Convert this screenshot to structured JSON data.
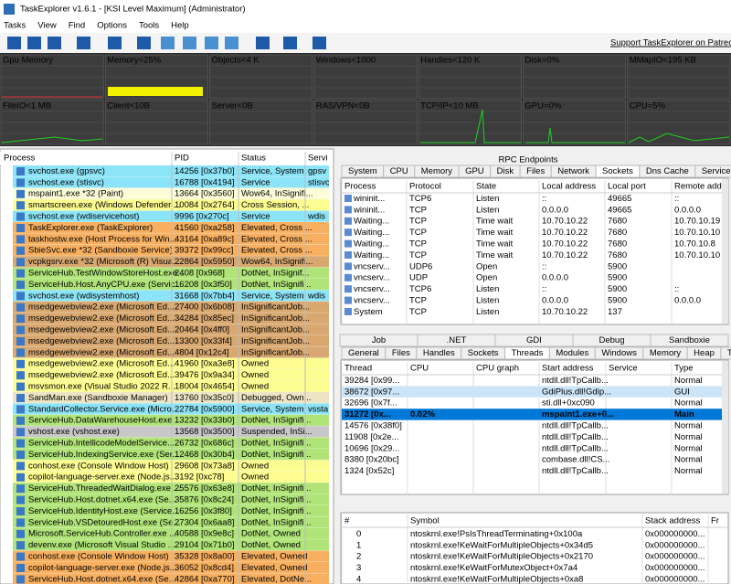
{
  "window": {
    "title": "TaskExplorer v1.6.1 - [KSI Level Maximum] (Administrator)"
  },
  "menu": [
    "Tasks",
    "View",
    "Find",
    "Options",
    "Tools",
    "Help"
  ],
  "toolbar": {
    "link": "Support TaskExplorer on Patreon"
  },
  "graphs": [
    "Gpu Memory",
    "Memory=25%",
    "Objects<4 K",
    "Windows<1000",
    "Handles<120 K",
    "Disk=0%",
    "MMapIO<195 KB",
    "FileIO<1 MB",
    "Client<10B",
    "Server<0B",
    "RAS/VPN<0B",
    "TCP/IP<10 MB",
    "GPU=0%",
    "CPU=5%"
  ],
  "processes": {
    "columns": [
      "Process",
      "PID",
      "Status",
      "Servi"
    ],
    "rows": [
      {
        "cells": [
          "svchost.exe (gpsvc)",
          "14256 [0x37b0]",
          "Service, System",
          "gpsv"
        ],
        "color": "#8ce4f8"
      },
      {
        "cells": [
          "svchost.exe (stisvc)",
          "16788 [0x4194]",
          "Service",
          "stisvc"
        ],
        "color": "#8ce4f8"
      },
      {
        "cells": [
          "mspaint1.exe *32 (Paint)",
          "13664 [0x3560]",
          "Wow64, InSignifi..."
        ],
        "color": "#fcfcd8"
      },
      {
        "cells": [
          "smartscreen.exe (Windows Defender ...",
          "10084 [0x2764]",
          "Cross Session, ..."
        ],
        "color": "#fcfc90"
      },
      {
        "cells": [
          "svchost.exe (wdiservicehost)",
          "9996 [0x270c]",
          "Service",
          "wdis"
        ],
        "color": "#8ce4f8"
      },
      {
        "cells": [
          "TaskExplorer.exe (TaskExplorer)",
          "41560 [0xa258]",
          "Elevated, Cross ..."
        ],
        "color": "#f8b060"
      },
      {
        "cells": [
          "taskhostw.exe (Host Process for Win...",
          "43164 [0xa89c]",
          "Elevated, Cross ..."
        ],
        "color": "#f8b060"
      },
      {
        "cells": [
          "SbieSvc.exe *32 (Sandboxie Service)",
          "39372 [0x99cc]",
          "Elevated, Cross ..."
        ],
        "color": "#f8b060"
      },
      {
        "cells": [
          "vcpkgsrv.exe *32 (Microsoft (R) Visua...",
          "22864 [0x5950]",
          "Wow64, InSignifi..."
        ],
        "color": "#d8a870"
      },
      {
        "cells": [
          "ServiceHub.TestWindowStoreHost.exe...",
          "2408 [0x968]",
          "DotNet, InSignif..."
        ],
        "color": "#b0e478"
      },
      {
        "cells": [
          "ServiceHub.Host.AnyCPU.exe (Servic...",
          "16208 [0x3f50]",
          "DotNet, InSignifi..."
        ],
        "color": "#b0e478"
      },
      {
        "cells": [
          "svchost.exe (wdisystemhost)",
          "31668 [0x7bb4]",
          "Service, System",
          "wdis"
        ],
        "color": "#8ce4f8"
      },
      {
        "cells": [
          "msedgewebview2.exe (Microsoft Ed...",
          "27400 [0x6b08]",
          "InSignificantJob..."
        ],
        "color": "#d8a870"
      },
      {
        "cells": [
          "msedgewebview2.exe (Microsoft Ed...",
          "34284 [0x85ec]",
          "InSignificantJob..."
        ],
        "color": "#d8a870"
      },
      {
        "cells": [
          "msedgewebview2.exe (Microsoft Ed...",
          "20464 [0x4ff0]",
          "InSignificantJob..."
        ],
        "color": "#d8a870"
      },
      {
        "cells": [
          "msedgewebview2.exe (Microsoft Ed...",
          "13300 [0x33f4]",
          "InSignificantJob..."
        ],
        "color": "#d8a870"
      },
      {
        "cells": [
          "msedgewebview2.exe (Microsoft Ed...",
          "4804 [0x12c4]",
          "InSignificantJob..."
        ],
        "color": "#d8a870"
      },
      {
        "cells": [
          "msedgewebview2.exe (Microsoft Ed...",
          "41960 [0xa3e8]",
          "Owned"
        ],
        "color": "#fcfc90"
      },
      {
        "cells": [
          "msedgewebview2.exe (Microsoft Ed...",
          "39476 [0x9a34]",
          "Owned"
        ],
        "color": "#fcfc90"
      },
      {
        "cells": [
          "msvsmon.exe (Visual Studio 2022 R...",
          "18004 [0x4654]",
          "Owned"
        ],
        "color": "#fcfc90"
      },
      {
        "cells": [
          "SandMan.exe (Sandboxie Manager)",
          "13760 [0x35c0]",
          "Debugged, Own..."
        ],
        "color": "#ece4c4"
      },
      {
        "cells": [
          "StandardCollector.Service.exe (Micro...",
          "22784 [0x5900]",
          "Service, System",
          "vssta"
        ],
        "color": "#8ce4f8"
      },
      {
        "cells": [
          "ServiceHub.DataWarehouseHost.exe ...",
          "13232 [0x33b0]",
          "DotNet, InSignifi..."
        ],
        "color": "#b0e478"
      },
      {
        "cells": [
          "vshost.exe (vshost.exe)",
          "13568 [0x3500]",
          "Suspended, InSi..."
        ],
        "color": "#c8c8c8"
      },
      {
        "cells": [
          "ServiceHub.IntellicodeModelService....",
          "26732 [0x686c]",
          "DotNet, InSignifi..."
        ],
        "color": "#b0e478"
      },
      {
        "cells": [
          "ServiceHub.IndexingService.exe (Ser...",
          "12468 [0x30b4]",
          "DotNet, InSignifi..."
        ],
        "color": "#b0e478"
      },
      {
        "cells": [
          "conhost.exe (Console Window Host)",
          "29608 [0x73a8]",
          "Owned"
        ],
        "color": "#fcfc90"
      },
      {
        "cells": [
          "copilot-language-server.exe (Node.js...",
          "3192 [0xc78]",
          "Owned"
        ],
        "color": "#fcfc90"
      },
      {
        "cells": [
          "ServiceHub.ThreadedWaitDialog.exe ...",
          "25576 [0x63e8]",
          "DotNet, InSignifi..."
        ],
        "color": "#b0e478"
      },
      {
        "cells": [
          "ServiceHub.Host.dotnet.x64.exe (Se...",
          "35876 [0x8c24]",
          "DotNet, InSignifi..."
        ],
        "color": "#b0e478"
      },
      {
        "cells": [
          "ServiceHub.IdentityHost.exe (Service...",
          "16256 [0x3f80]",
          "DotNet, InSignifi..."
        ],
        "color": "#b0e478"
      },
      {
        "cells": [
          "ServiceHub.VSDetouredHost.exe (Se...",
          "27304 [0x6aa8]",
          "DotNet, InSignifi..."
        ],
        "color": "#b0e478"
      },
      {
        "cells": [
          "Microsoft.ServiceHub.Controller.exe ...",
          "40588 [0x9e8c]",
          "DotNet, Owned"
        ],
        "color": "#b0e478"
      },
      {
        "cells": [
          "devenv.exe (Microsoft Visual Studio ...",
          "29104 [0x71b0]",
          "DotNet, Owned"
        ],
        "color": "#b0e478"
      },
      {
        "cells": [
          "conhost.exe (Console Window Host)",
          "35328 [0x8a00]",
          "Elevated, Owned"
        ],
        "color": "#f8b060"
      },
      {
        "cells": [
          "copilot-language-server.exe (Node.js...",
          "36052 [0x8cd4]",
          "Elevated, Owned"
        ],
        "color": "#f8b060"
      },
      {
        "cells": [
          "ServiceHub.Host.dotnet.x64.exe (Se...",
          "42864 [0xa770]",
          "Elevated, DotNe..."
        ],
        "color": "#f8b060"
      }
    ]
  },
  "endpoints": {
    "title": "RPC Endpoints",
    "tabs": [
      "System",
      "CPU",
      "Memory",
      "GPU",
      "Disk",
      "Files",
      "Network",
      "Sockets",
      "Dns Cache",
      "Services"
    ],
    "columns": [
      "Process",
      "Protocol",
      "State",
      "Local address",
      "Local port",
      "Remote addr"
    ],
    "rows": [
      [
        "wininit...",
        "TCP6",
        "Listen",
        "::",
        "49665",
        "::"
      ],
      [
        "wininit...",
        "TCP",
        "Listen",
        "0.0.0.0",
        "49665",
        "0.0.0.0"
      ],
      [
        "Waiting...",
        "TCP",
        "Time wait",
        "10.70.10.22",
        "7680",
        "10.70.10.19"
      ],
      [
        "Waiting...",
        "TCP",
        "Time wait",
        "10.70.10.22",
        "7680",
        "10.70.10.10"
      ],
      [
        "Waiting...",
        "TCP",
        "Time wait",
        "10.70.10.22",
        "7680",
        "10.70.10.8"
      ],
      [
        "Waiting...",
        "TCP",
        "Time wait",
        "10.70.10.22",
        "7680",
        "10.70.10.10"
      ],
      [
        "vncserv...",
        "UDP6",
        "Open",
        "::",
        "5900"
      ],
      [
        "vncserv...",
        "UDP",
        "Open",
        "0.0.0.0",
        "5900"
      ],
      [
        "vncserv...",
        "TCP6",
        "Listen",
        "::",
        "5900",
        "::"
      ],
      [
        "vncserv...",
        "TCP",
        "Listen",
        "0.0.0.0",
        "5900",
        "0.0.0.0"
      ],
      [
        "System",
        "TCP",
        "Listen",
        "10.70.10.22",
        "137"
      ]
    ]
  },
  "details": {
    "tabs_top": [
      "Job",
      ".NET",
      "GDI",
      "Debug",
      "Sandboxie"
    ],
    "tabs": [
      "General",
      "Files",
      "Handles",
      "Sockets",
      "Threads",
      "Modules",
      "Windows",
      "Memory",
      "Heap",
      "Token"
    ],
    "columns": [
      "Thread",
      "CPU",
      "CPU graph",
      "Start address",
      "Service",
      "Type"
    ],
    "rows": [
      {
        "thread": "39284 [0x99...",
        "start": "ntdll.dll!TpCallb...",
        "type": "Normal"
      },
      {
        "thread": "38672 [0x97...",
        "start": "GdiPlus.dll!Gdip...",
        "type": "GUI"
      },
      {
        "thread": "32696 [0x7f...",
        "start": "sti.dll+0xc090",
        "type": "Normal"
      },
      {
        "thread": "31272 [0x...",
        "cpu": "0.02%",
        "start": "mspaint1.exe+0...",
        "type": "Main"
      },
      {
        "thread": "14576 [0x38f0]",
        "start": "ntdll.dll!TpCallb...",
        "type": "Normal"
      },
      {
        "thread": "11908 [0x2e...",
        "start": "ntdll.dll!TpCallb...",
        "type": "Normal"
      },
      {
        "thread": "10696 [0x29...",
        "start": "ntdll.dll!TpCallb...",
        "type": "Normal"
      },
      {
        "thread": "8380 [0x20bc]",
        "start": "combase.dll!CS...",
        "type": "Normal"
      },
      {
        "thread": "1324 [0x52c]",
        "start": "ntdll.dll!TpCallb...",
        "type": "Normal"
      }
    ]
  },
  "stack": {
    "columns": [
      "#",
      "Symbol",
      "Stack address",
      "Fr"
    ],
    "rows": [
      [
        "0",
        "ntoskrnl.exe!PsIsThreadTerminating+0x100a",
        "0x000000000..."
      ],
      [
        "1",
        "ntoskrnl.exe!KeWaitForMultipleObjects+0x34d5",
        "0x000000000..."
      ],
      [
        "2",
        "ntoskrnl.exe!KeWaitForMultipleObjects+0x2170",
        "0x000000000..."
      ],
      [
        "3",
        "ntoskrnl.exe!KeWaitForMutexObject+0x7a4",
        "0x000000000..."
      ],
      [
        "4",
        "ntoskrnl.exe!KeWaitForMultipleObjects+0xa8",
        "0x000000000..."
      ]
    ]
  }
}
